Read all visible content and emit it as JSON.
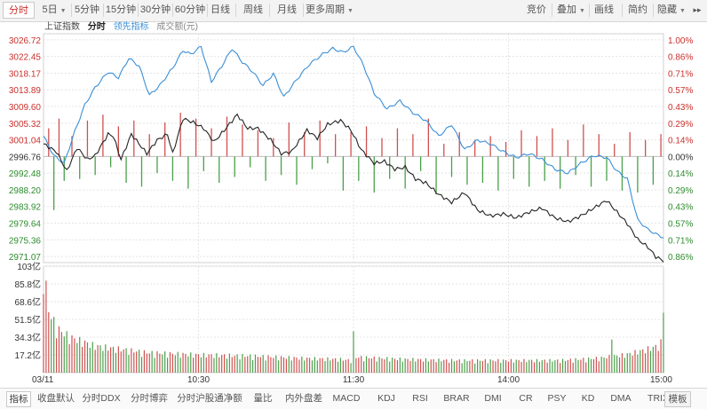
{
  "toolbar": {
    "left": [
      {
        "label": "分时",
        "active": true
      },
      {
        "label": "5日",
        "caret": true
      },
      {
        "label": "5分钟"
      },
      {
        "label": "15分钟"
      },
      {
        "label": "30分钟"
      },
      {
        "label": "60分钟"
      },
      {
        "label": "日线"
      },
      {
        "label": "周线"
      },
      {
        "label": "月线"
      },
      {
        "label": "更多周期",
        "caret": true
      }
    ],
    "right": [
      {
        "label": "竞价"
      },
      {
        "label": "叠加",
        "caret": true
      },
      {
        "label": "画线"
      },
      {
        "label": "简约"
      },
      {
        "label": "隐藏",
        "caret": true
      }
    ],
    "expand_glyph": "▸▸"
  },
  "legend": {
    "index_name": "上证指数",
    "mode": "分时",
    "leading_label": "领先指标",
    "volume_label": "成交额(元)"
  },
  "colors": {
    "price": "#222222",
    "leading": "#3a8fd6",
    "up": "#d05050",
    "down": "#49a049",
    "grid": "#e4e4e4",
    "axis_up": "#c9302c",
    "axis_down": "#2e8b2e"
  },
  "chart_data": [
    {
      "type": "line",
      "name": "上证指数 分时",
      "x_labels": [
        "03/11",
        "10:30",
        "11:30",
        "14:00",
        "15:00"
      ],
      "x_tick_index": [
        0,
        60,
        120,
        180,
        240
      ],
      "prev_close": 2996.76,
      "yticks": [
        3026.72,
        3022.45,
        3018.17,
        3013.89,
        3009.6,
        3005.32,
        3001.04,
        2996.76,
        2992.48,
        2988.2,
        2983.92,
        2979.64,
        2975.36,
        2971.07
      ],
      "pct_ticks": [
        "1.00%",
        "0.86%",
        "0.71%",
        "0.57%",
        "0.43%",
        "0.29%",
        "0.14%",
        "0.00%",
        "0.14%",
        "0.29%",
        "0.43%",
        "0.57%",
        "0.71%",
        "0.86%"
      ],
      "ylim": [
        2969.5,
        3028.3
      ],
      "price_anchors": [
        [
          0,
          3000.0
        ],
        [
          5,
          2998.0
        ],
        [
          9,
          2993.0
        ],
        [
          13,
          2999.0
        ],
        [
          17,
          2996.0
        ],
        [
          20,
          2997.0
        ],
        [
          25,
          3002.5
        ],
        [
          27,
          3002.0
        ],
        [
          30,
          2996.0
        ],
        [
          34,
          3002.5
        ],
        [
          40,
          2997.5
        ],
        [
          44,
          3001.0
        ],
        [
          48,
          3002.5
        ],
        [
          50,
          2997.5
        ],
        [
          54,
          3006.5
        ],
        [
          58,
          3005.5
        ],
        [
          62,
          3004.0
        ],
        [
          66,
          3000.5
        ],
        [
          70,
          3003.5
        ],
        [
          75,
          3007.5
        ],
        [
          79,
          3004.0
        ],
        [
          83,
          3004.0
        ],
        [
          88,
          3001.0
        ],
        [
          92,
          2997.5
        ],
        [
          96,
          2998.0
        ],
        [
          102,
          3003.5
        ],
        [
          106,
          3001.5
        ],
        [
          110,
          3005.0
        ],
        [
          115,
          3006.0
        ],
        [
          119,
          3003.5
        ],
        [
          123,
          2998.5
        ],
        [
          128,
          2995.0
        ],
        [
          132,
          2995.5
        ],
        [
          136,
          2993.5
        ],
        [
          140,
          2994.0
        ],
        [
          144,
          2991.0
        ],
        [
          148,
          2990.0
        ],
        [
          153,
          2987.0
        ],
        [
          158,
          2985.0
        ],
        [
          163,
          2987.5
        ],
        [
          168,
          2983.0
        ],
        [
          173,
          2981.5
        ],
        [
          178,
          2982.0
        ],
        [
          183,
          2981.0
        ],
        [
          188,
          2982.5
        ],
        [
          193,
          2983.5
        ],
        [
          198,
          2981.0
        ],
        [
          203,
          2980.0
        ],
        [
          208,
          2981.5
        ],
        [
          213,
          2983.5
        ],
        [
          218,
          2985.5
        ],
        [
          222,
          2982.5
        ],
        [
          226,
          2979.5
        ],
        [
          230,
          2975.5
        ],
        [
          234,
          2973.5
        ],
        [
          237,
          2971.0
        ],
        [
          240,
          2970.0
        ]
      ],
      "leading_anchors": [
        [
          0,
          3002.0
        ],
        [
          4,
          2997.0
        ],
        [
          8,
          2995.0
        ],
        [
          12,
          3003.0
        ],
        [
          16,
          3010.0
        ],
        [
          20,
          3014.5
        ],
        [
          25,
          3018.5
        ],
        [
          29,
          3017.0
        ],
        [
          33,
          3022.0
        ],
        [
          37,
          3020.0
        ],
        [
          41,
          3012.5
        ],
        [
          45,
          3015.0
        ],
        [
          50,
          3019.5
        ],
        [
          54,
          3024.0
        ],
        [
          57,
          3023.0
        ],
        [
          61,
          3025.0
        ],
        [
          65,
          3016.0
        ],
        [
          69,
          3020.0
        ],
        [
          73,
          3024.5
        ],
        [
          77,
          3021.0
        ],
        [
          81,
          3018.5
        ],
        [
          85,
          3015.0
        ],
        [
          89,
          3018.0
        ],
        [
          93,
          3012.0
        ],
        [
          98,
          3016.5
        ],
        [
          103,
          3020.5
        ],
        [
          108,
          3023.0
        ],
        [
          112,
          3024.5
        ],
        [
          116,
          3023.5
        ],
        [
          120,
          3025.0
        ],
        [
          124,
          3020.0
        ],
        [
          128,
          3013.0
        ],
        [
          133,
          3009.0
        ],
        [
          138,
          3011.0
        ],
        [
          143,
          3008.0
        ],
        [
          148,
          3006.0
        ],
        [
          153,
          3002.0
        ],
        [
          158,
          3005.0
        ],
        [
          163,
          2998.5
        ],
        [
          168,
          3001.0
        ],
        [
          173,
          3000.0
        ],
        [
          178,
          2998.0
        ],
        [
          183,
          2996.5
        ],
        [
          188,
          2997.5
        ],
        [
          193,
          2996.0
        ],
        [
          198,
          2993.5
        ],
        [
          203,
          2992.5
        ],
        [
          208,
          2995.0
        ],
        [
          213,
          2997.0
        ],
        [
          218,
          2996.5
        ],
        [
          222,
          2993.0
        ],
        [
          226,
          2991.0
        ],
        [
          230,
          2980.5
        ],
        [
          234,
          2978.0
        ],
        [
          238,
          2976.5
        ],
        [
          240,
          2976.0
        ]
      ],
      "lead_bars": [
        {
          "i": 2,
          "v": 3004.0
        },
        {
          "i": 4,
          "v": 2983.0
        },
        {
          "i": 6,
          "v": 3006.5
        },
        {
          "i": 8,
          "v": 2990.5
        },
        {
          "i": 11,
          "v": 3002.0
        },
        {
          "i": 14,
          "v": 2991.0
        },
        {
          "i": 17,
          "v": 3006.0
        },
        {
          "i": 20,
          "v": 2992.0
        },
        {
          "i": 23,
          "v": 3007.5
        },
        {
          "i": 26,
          "v": 2994.0
        },
        {
          "i": 29,
          "v": 3004.5
        },
        {
          "i": 32,
          "v": 2990.0
        },
        {
          "i": 35,
          "v": 3006.0
        },
        {
          "i": 38,
          "v": 2989.0
        },
        {
          "i": 41,
          "v": 3002.5
        },
        {
          "i": 44,
          "v": 2992.5
        },
        {
          "i": 47,
          "v": 3005.5
        },
        {
          "i": 50,
          "v": 2990.5
        },
        {
          "i": 53,
          "v": 3008.0
        },
        {
          "i": 56,
          "v": 2988.5
        },
        {
          "i": 59,
          "v": 3006.5
        },
        {
          "i": 62,
          "v": 2993.0
        },
        {
          "i": 65,
          "v": 3004.0
        },
        {
          "i": 68,
          "v": 2990.0
        },
        {
          "i": 71,
          "v": 3007.0
        },
        {
          "i": 74,
          "v": 2991.5
        },
        {
          "i": 77,
          "v": 3005.0
        },
        {
          "i": 80,
          "v": 2994.0
        },
        {
          "i": 83,
          "v": 3003.5
        },
        {
          "i": 86,
          "v": 2990.5
        },
        {
          "i": 89,
          "v": 3001.5
        },
        {
          "i": 92,
          "v": 2992.0
        },
        {
          "i": 95,
          "v": 3005.5
        },
        {
          "i": 98,
          "v": 2989.5
        },
        {
          "i": 101,
          "v": 3003.0
        },
        {
          "i": 104,
          "v": 2993.5
        },
        {
          "i": 107,
          "v": 3006.0
        },
        {
          "i": 110,
          "v": 2995.0
        },
        {
          "i": 113,
          "v": 3002.5
        },
        {
          "i": 116,
          "v": 2988.0
        },
        {
          "i": 119,
          "v": 3003.0
        },
        {
          "i": 122,
          "v": 2990.5
        },
        {
          "i": 125,
          "v": 3004.5
        },
        {
          "i": 128,
          "v": 2987.5
        },
        {
          "i": 131,
          "v": 3001.5
        },
        {
          "i": 134,
          "v": 2991.0
        },
        {
          "i": 137,
          "v": 3004.0
        },
        {
          "i": 140,
          "v": 2988.5
        },
        {
          "i": 143,
          "v": 3002.5
        },
        {
          "i": 146,
          "v": 2993.0
        },
        {
          "i": 149,
          "v": 3006.5
        },
        {
          "i": 152,
          "v": 2987.0
        },
        {
          "i": 155,
          "v": 3000.0
        },
        {
          "i": 158,
          "v": 2991.5
        },
        {
          "i": 161,
          "v": 3003.0
        },
        {
          "i": 164,
          "v": 2989.5
        },
        {
          "i": 167,
          "v": 3001.0
        },
        {
          "i": 170,
          "v": 2990.0
        },
        {
          "i": 173,
          "v": 3002.0
        },
        {
          "i": 176,
          "v": 2988.0
        },
        {
          "i": 179,
          "v": 3000.5
        },
        {
          "i": 182,
          "v": 2991.0
        },
        {
          "i": 185,
          "v": 3003.5
        },
        {
          "i": 188,
          "v": 2989.0
        },
        {
          "i": 191,
          "v": 3002.0
        },
        {
          "i": 194,
          "v": 2990.5
        },
        {
          "i": 197,
          "v": 3004.0
        },
        {
          "i": 200,
          "v": 2988.5
        },
        {
          "i": 203,
          "v": 3001.0
        },
        {
          "i": 206,
          "v": 2992.0
        },
        {
          "i": 209,
          "v": 3005.0
        },
        {
          "i": 212,
          "v": 2989.0
        },
        {
          "i": 215,
          "v": 3002.5
        },
        {
          "i": 218,
          "v": 2990.5
        },
        {
          "i": 221,
          "v": 3000.0
        },
        {
          "i": 224,
          "v": 2988.0
        },
        {
          "i": 227,
          "v": 3003.0
        },
        {
          "i": 230,
          "v": 2987.5
        },
        {
          "i": 233,
          "v": 3001.0
        },
        {
          "i": 236,
          "v": 2989.5
        },
        {
          "i": 239,
          "v": 3002.5
        }
      ]
    },
    {
      "type": "bar",
      "name": "成交额(元)",
      "yticks": [
        "103亿",
        "85.8亿",
        "68.6亿",
        "51.5亿",
        "34.3亿",
        "17.2亿"
      ],
      "ytick_values": [
        103,
        85.8,
        68.6,
        51.5,
        34.3,
        17.2
      ],
      "ymax": 103,
      "volume_anchors": [
        [
          0,
          95
        ],
        [
          2,
          56
        ],
        [
          5,
          40
        ],
        [
          10,
          32
        ],
        [
          20,
          24
        ],
        [
          40,
          18
        ],
        [
          60,
          16
        ],
        [
          80,
          15
        ],
        [
          100,
          13
        ],
        [
          115,
          12
        ],
        [
          119,
          11
        ],
        [
          120,
          14
        ],
        [
          140,
          12
        ],
        [
          160,
          11
        ],
        [
          180,
          11
        ],
        [
          200,
          11
        ],
        [
          215,
          13
        ],
        [
          225,
          16
        ],
        [
          232,
          20
        ],
        [
          238,
          24
        ],
        [
          240,
          30
        ]
      ],
      "volume_spikes": [
        [
          120,
          40
        ],
        [
          220,
          32
        ],
        [
          240,
          58
        ]
      ]
    }
  ],
  "bottom_tabs": [
    {
      "label": "指标",
      "active": true
    },
    {
      "label": "收盘默认"
    },
    {
      "label": "分时DDX"
    },
    {
      "label": "分时博弈"
    },
    {
      "label": "分时沪股通净额"
    },
    {
      "label": "量比"
    },
    {
      "label": "内外盘差"
    },
    {
      "label": "MACD"
    },
    {
      "label": "KDJ"
    },
    {
      "label": "RSI"
    },
    {
      "label": "BRAR"
    },
    {
      "label": "DMI"
    },
    {
      "label": "CR"
    },
    {
      "label": "PSY"
    },
    {
      "label": "KD"
    },
    {
      "label": "DMA"
    },
    {
      "label": "TRIX"
    }
  ],
  "bottom_right_tab": "模板"
}
